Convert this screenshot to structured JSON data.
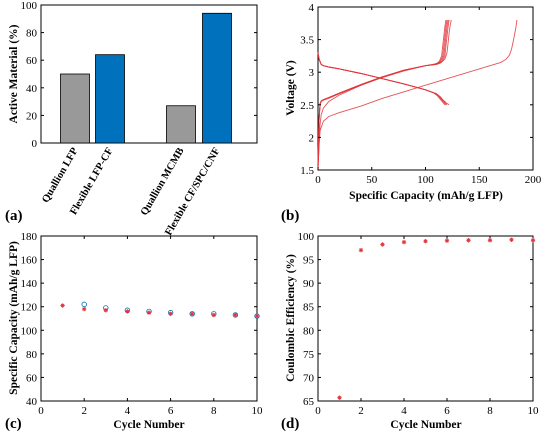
{
  "chart_data": [
    {
      "panel_label": "(a)",
      "type": "bar",
      "categories": [
        "Quallion LFP",
        "Flexible LFP-CF",
        "Quallion MCMB",
        "Flexible CF/SPC/CNF"
      ],
      "values": [
        50,
        64,
        27,
        94
      ],
      "bar_colors": [
        "#999999",
        "#0072BD",
        "#999999",
        "#0072BD"
      ],
      "xlabel": "",
      "ylabel": "Active Material (%)",
      "ylim": [
        0,
        100
      ],
      "yticks": [
        0,
        20,
        40,
        60,
        80,
        100
      ]
    },
    {
      "panel_label": "(b)",
      "type": "line",
      "xlabel": "Specific Capacity (mAh/g LFP)",
      "ylabel": "Voltage (V)",
      "xlim": [
        0,
        200
      ],
      "ylim": [
        1.5,
        4
      ],
      "xticks": [
        0,
        50,
        100,
        150,
        200
      ],
      "yticks": [
        1.5,
        2,
        2.5,
        3,
        3.5,
        4
      ],
      "line_color": "#e0353b",
      "series": [
        {
          "x": [
            0,
            1,
            2,
            3,
            5,
            10,
            20,
            40,
            60,
            80,
            100,
            110,
            115,
            118,
            120,
            121,
            122,
            123,
            124
          ],
          "y": [
            1.5,
            1.9,
            2.2,
            2.35,
            2.45,
            2.55,
            2.65,
            2.8,
            2.92,
            3.02,
            3.1,
            3.13,
            3.16,
            3.2,
            3.3,
            3.45,
            3.6,
            3.72,
            3.8
          ]
        },
        {
          "x": [
            0,
            1,
            2,
            3,
            5,
            10,
            20,
            40,
            60,
            80,
            100,
            110,
            114,
            116,
            118,
            119,
            120,
            121,
            122
          ],
          "y": [
            1.6,
            2.25,
            2.5,
            2.55,
            2.57,
            2.6,
            2.67,
            2.8,
            2.92,
            3.03,
            3.1,
            3.12,
            3.14,
            3.17,
            3.25,
            3.4,
            3.55,
            3.7,
            3.8
          ]
        },
        {
          "x": [
            0,
            1,
            2,
            3,
            5,
            10,
            20,
            40,
            60,
            80,
            100,
            110,
            113,
            115,
            117,
            118,
            119,
            120,
            121
          ],
          "y": [
            1.6,
            2.3,
            2.52,
            2.56,
            2.58,
            2.61,
            2.68,
            2.81,
            2.93,
            3.03,
            3.1,
            3.12,
            3.14,
            3.17,
            3.25,
            3.4,
            3.55,
            3.7,
            3.8
          ]
        },
        {
          "x": [
            0,
            1,
            2,
            3,
            5,
            10,
            20,
            40,
            60,
            80,
            100,
            108,
            112,
            114,
            116,
            117,
            118,
            119,
            120
          ],
          "y": [
            1.6,
            2.3,
            2.52,
            2.56,
            2.58,
            2.61,
            2.68,
            2.81,
            2.93,
            3.03,
            3.1,
            3.12,
            3.14,
            3.17,
            3.25,
            3.4,
            3.55,
            3.7,
            3.8
          ]
        },
        {
          "x": [
            0,
            1,
            2,
            3,
            5,
            10,
            20,
            40,
            60,
            80,
            100,
            108,
            111,
            113,
            115,
            116,
            117,
            118,
            119
          ],
          "y": [
            1.6,
            2.3,
            2.52,
            2.56,
            2.58,
            2.61,
            2.68,
            2.81,
            2.93,
            3.03,
            3.1,
            3.12,
            3.14,
            3.17,
            3.25,
            3.4,
            3.55,
            3.7,
            3.8
          ]
        },
        {
          "x": [
            0,
            1,
            3,
            5,
            10,
            20,
            40,
            60,
            80,
            100,
            110,
            114,
            116,
            118,
            119,
            120,
            121,
            122
          ],
          "y": [
            3.3,
            3.2,
            3.12,
            3.1,
            3.08,
            3.05,
            2.98,
            2.9,
            2.82,
            2.73,
            2.67,
            2.62,
            2.58,
            2.55,
            2.53,
            2.52,
            2.51,
            2.5
          ]
        },
        {
          "x": [
            0,
            1,
            3,
            5,
            10,
            20,
            40,
            60,
            80,
            100,
            110,
            113,
            115,
            117,
            118,
            119,
            120
          ],
          "y": [
            3.3,
            3.2,
            3.12,
            3.1,
            3.08,
            3.05,
            2.98,
            2.9,
            2.82,
            2.73,
            2.67,
            2.63,
            2.59,
            2.56,
            2.54,
            2.52,
            2.5
          ]
        },
        {
          "x": [
            0,
            1,
            3,
            5,
            10,
            20,
            40,
            60,
            80,
            100,
            108,
            112,
            114,
            116,
            117,
            118,
            119
          ],
          "y": [
            3.3,
            3.2,
            3.12,
            3.1,
            3.08,
            3.05,
            2.98,
            2.9,
            2.82,
            2.73,
            2.68,
            2.64,
            2.6,
            2.56,
            2.54,
            2.52,
            2.5
          ]
        },
        {
          "x": [
            0,
            1,
            3,
            5,
            10,
            20,
            40,
            60,
            80,
            100,
            108,
            111,
            113,
            115,
            116,
            117,
            118
          ],
          "y": [
            3.3,
            3.2,
            3.12,
            3.1,
            3.08,
            3.05,
            2.98,
            2.9,
            2.82,
            2.73,
            2.68,
            2.64,
            2.6,
            2.56,
            2.54,
            2.52,
            2.5
          ]
        },
        {
          "x": [
            0,
            1,
            2,
            5,
            10,
            20,
            40,
            60,
            80,
            100,
            120,
            140,
            160,
            170,
            175,
            178,
            180,
            182,
            184,
            185
          ],
          "y": [
            1.5,
            1.9,
            2.1,
            2.25,
            2.32,
            2.38,
            2.48,
            2.6,
            2.7,
            2.8,
            2.9,
            3.0,
            3.1,
            3.15,
            3.2,
            3.26,
            3.35,
            3.5,
            3.68,
            3.8
          ]
        }
      ]
    },
    {
      "panel_label": "(c)",
      "type": "scatter",
      "xlabel": "Cycle Number",
      "ylabel": "Specific Capacity (mAh/g LFP)",
      "xlim": [
        0,
        10
      ],
      "ylim": [
        40,
        180
      ],
      "xticks": [
        0,
        2,
        4,
        6,
        8,
        10
      ],
      "yticks": [
        40,
        60,
        80,
        100,
        120,
        140,
        160,
        180
      ],
      "series": [
        {
          "marker": "open-circle",
          "color": "#0072BD",
          "x": [
            2,
            3,
            4,
            5,
            6,
            7,
            8,
            9,
            10
          ],
          "y": [
            122,
            119,
            117,
            116,
            115,
            114,
            114,
            113,
            112
          ]
        },
        {
          "marker": "star",
          "color": "#e0353b",
          "x": [
            1,
            2,
            3,
            4,
            5,
            6,
            7,
            8,
            9,
            10
          ],
          "y": [
            121,
            118,
            117,
            116,
            115,
            114,
            114,
            113,
            113,
            112
          ]
        }
      ]
    },
    {
      "panel_label": "(d)",
      "type": "scatter",
      "xlabel": "Cycle Number",
      "ylabel": "Coulombic Efficiency (%)",
      "xlim": [
        0,
        10
      ],
      "ylim": [
        65,
        100
      ],
      "xticks": [
        0,
        2,
        4,
        6,
        8,
        10
      ],
      "yticks": [
        65,
        70,
        75,
        80,
        85,
        90,
        95,
        100
      ],
      "series": [
        {
          "marker": "star",
          "color": "#e0353b",
          "x": [
            1,
            2,
            3,
            4,
            5,
            6,
            7,
            8,
            9,
            10
          ],
          "y": [
            65.7,
            97.0,
            98.2,
            98.7,
            98.9,
            99.0,
            99.1,
            99.1,
            99.2,
            99.1
          ]
        }
      ]
    }
  ]
}
